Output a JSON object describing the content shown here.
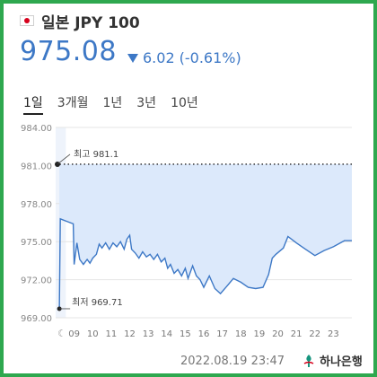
{
  "header": {
    "currency_name": "일본 JPY 100"
  },
  "quote": {
    "price": "975.08",
    "change": "6.02",
    "change_pct": "(-0.61%)"
  },
  "tabs": [
    {
      "label": "1일",
      "active": true
    },
    {
      "label": "3개월",
      "active": false
    },
    {
      "label": "1년",
      "active": false
    },
    {
      "label": "3년",
      "active": false
    },
    {
      "label": "10년",
      "active": false
    }
  ],
  "chart_data": {
    "type": "area",
    "y_ticks": [
      "984.00",
      "981.00",
      "978.00",
      "975.00",
      "972.00",
      "969.00"
    ],
    "y_tick_values": [
      984,
      981,
      978,
      975,
      972,
      969
    ],
    "ylim": [
      969,
      984
    ],
    "x_ticks": [
      "09",
      "10",
      "11",
      "12",
      "13",
      "14",
      "15",
      "16",
      "17",
      "18",
      "19",
      "20",
      "21",
      "22",
      "23"
    ],
    "xlim": [
      8.0,
      24.0
    ],
    "high_label": "최고 981.1",
    "high_value": 981.1,
    "low_label": "최저 969.71",
    "low_value": 969.71,
    "points": [
      [
        8.2,
        969.71
      ],
      [
        8.25,
        976.8
      ],
      [
        8.6,
        976.6
      ],
      [
        8.95,
        976.4
      ],
      [
        9.0,
        973.2
      ],
      [
        9.15,
        974.9
      ],
      [
        9.3,
        973.6
      ],
      [
        9.5,
        973.2
      ],
      [
        9.7,
        973.6
      ],
      [
        9.85,
        973.3
      ],
      [
        10.0,
        973.7
      ],
      [
        10.2,
        974.0
      ],
      [
        10.35,
        974.8
      ],
      [
        10.5,
        974.5
      ],
      [
        10.7,
        974.9
      ],
      [
        10.9,
        974.4
      ],
      [
        11.1,
        974.9
      ],
      [
        11.3,
        974.6
      ],
      [
        11.5,
        975.0
      ],
      [
        11.7,
        974.4
      ],
      [
        11.85,
        975.2
      ],
      [
        12.0,
        975.5
      ],
      [
        12.1,
        974.4
      ],
      [
        12.3,
        974.1
      ],
      [
        12.5,
        973.7
      ],
      [
        12.7,
        974.2
      ],
      [
        12.9,
        973.8
      ],
      [
        13.1,
        974.0
      ],
      [
        13.3,
        973.6
      ],
      [
        13.5,
        974.0
      ],
      [
        13.7,
        973.4
      ],
      [
        13.9,
        973.7
      ],
      [
        14.05,
        972.9
      ],
      [
        14.2,
        973.2
      ],
      [
        14.4,
        972.5
      ],
      [
        14.6,
        972.8
      ],
      [
        14.8,
        972.3
      ],
      [
        15.0,
        972.9
      ],
      [
        15.15,
        972.1
      ],
      [
        15.4,
        973.1
      ],
      [
        15.6,
        972.3
      ],
      [
        15.8,
        972.0
      ],
      [
        16.0,
        971.4
      ],
      [
        16.3,
        972.3
      ],
      [
        16.6,
        971.3
      ],
      [
        16.9,
        970.9
      ],
      [
        17.2,
        971.4
      ],
      [
        17.6,
        972.1
      ],
      [
        18.0,
        971.8
      ],
      [
        18.4,
        971.4
      ],
      [
        18.8,
        971.3
      ],
      [
        19.2,
        971.4
      ],
      [
        19.5,
        972.4
      ],
      [
        19.7,
        973.7
      ],
      [
        19.9,
        974.0
      ],
      [
        20.3,
        974.5
      ],
      [
        20.55,
        975.4
      ],
      [
        21.0,
        974.9
      ],
      [
        21.5,
        974.4
      ],
      [
        22.0,
        973.9
      ],
      [
        22.5,
        974.3
      ],
      [
        23.0,
        974.6
      ],
      [
        23.6,
        975.08
      ]
    ],
    "timestamp": "2022.08.19 23:47"
  },
  "footer": {
    "bank_name": "하나은행"
  },
  "colors": {
    "accent": "#3d78c6",
    "area_fill": "#dce9fb",
    "border": "#2ea84f"
  }
}
